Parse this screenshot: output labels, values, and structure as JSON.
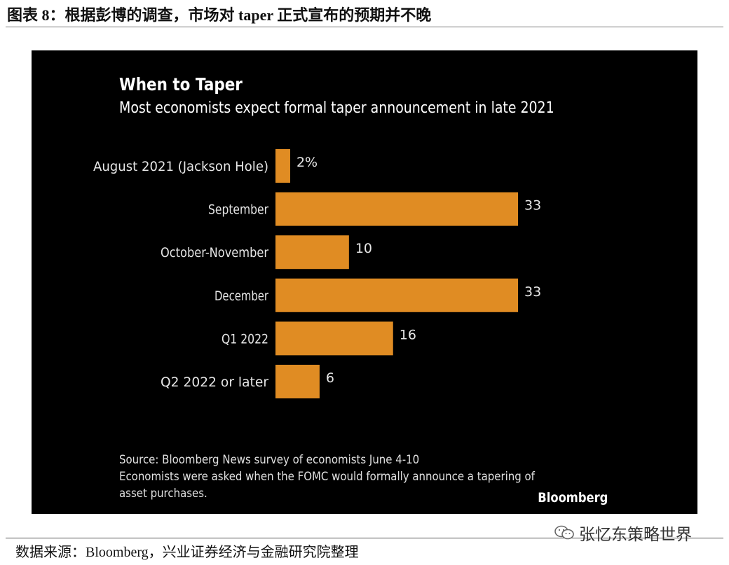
{
  "figure": {
    "title": "图表 8：根据彭博的调查，市场对 taper 正式宣布的预期并不晚",
    "source_note": "数据来源：Bloomberg，兴业证券经济与金融研究院整理",
    "watermark": "张忆东策略世界",
    "watermark_icon": "wechat-icon"
  },
  "panel": {
    "background": "#000000",
    "bar_color": "#e08c23",
    "source": "Source: Bloomberg News survey of economists June 4-10",
    "note_line1": "Economists were asked when the FOMC would formally announce a tapering of",
    "note_line2": "asset purchases.",
    "brand": "Bloomberg"
  },
  "chart_data": {
    "type": "bar",
    "orientation": "horizontal",
    "title": "When to Taper",
    "subtitle": "Most economists expect formal taper announcement in late 2021",
    "categories": [
      "August 2021 (Jackson Hole)",
      "September",
      "October-November",
      "December",
      "Q1 2022",
      "Q2 2022 or later"
    ],
    "values": [
      2,
      33,
      10,
      33,
      16,
      6
    ],
    "value_labels": [
      "2%",
      "33",
      "10",
      "33",
      "16",
      "6"
    ],
    "unit": "%",
    "xlim": [
      0,
      33
    ],
    "grid": false,
    "legend": "none"
  }
}
